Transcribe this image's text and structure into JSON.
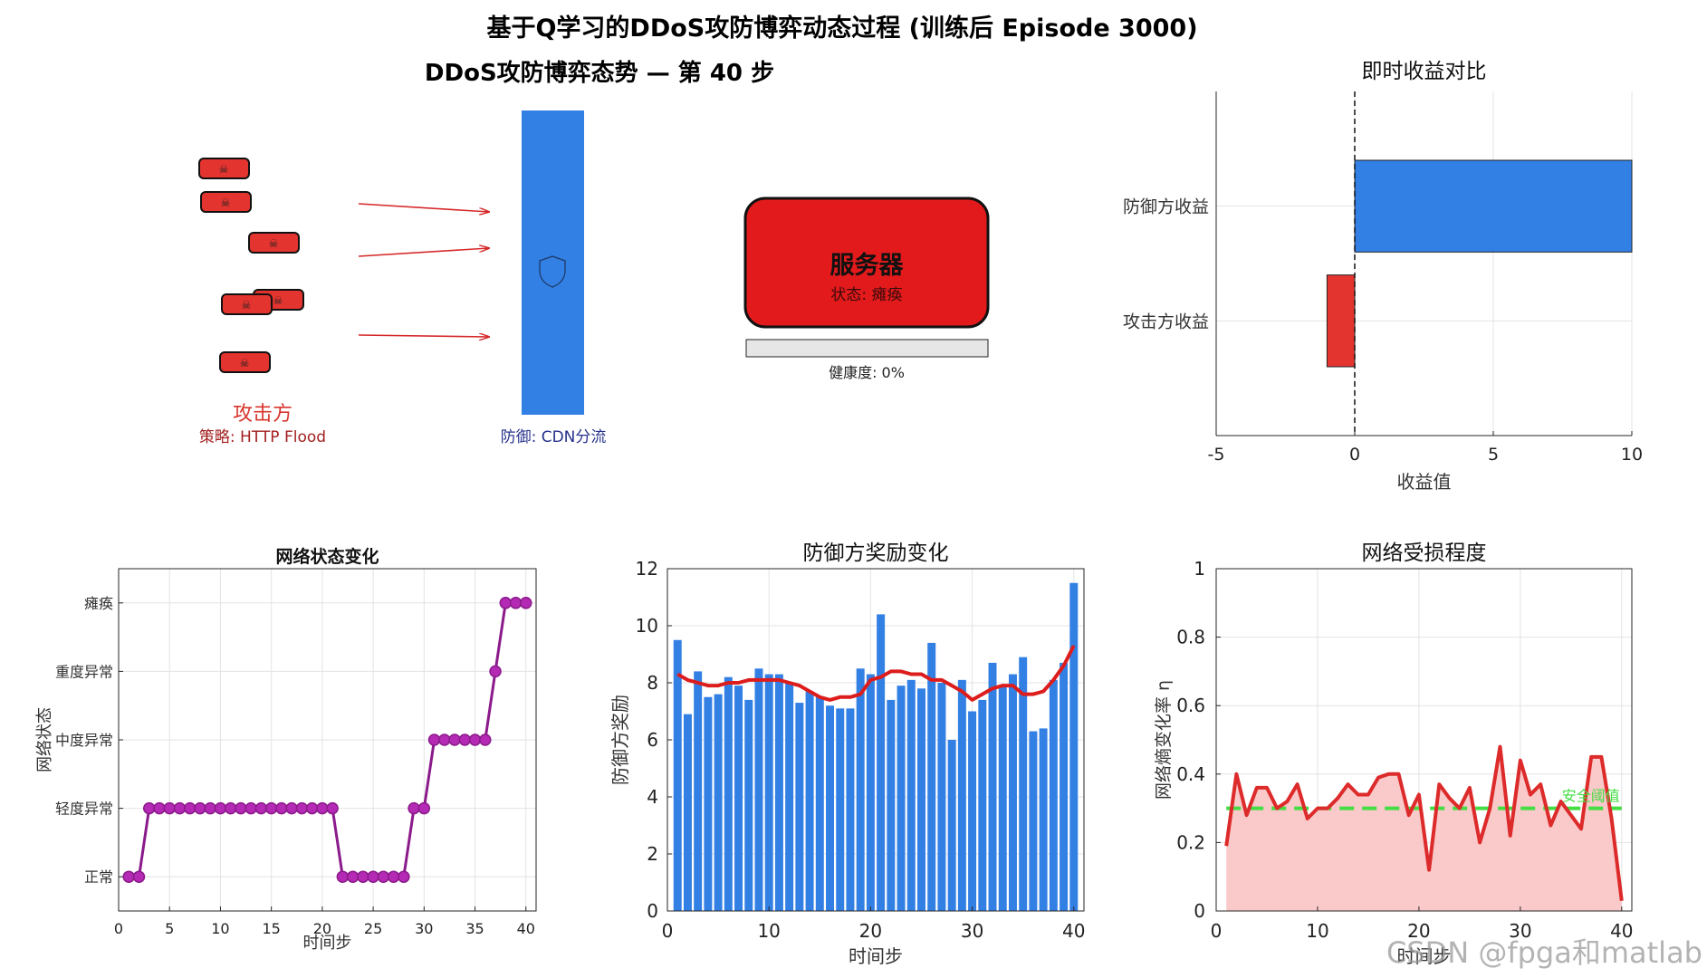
{
  "figure": {
    "main_title": "基于Q学习的DDoS攻防博弈动态过程 (训练后 Episode 3000)",
    "watermark": "CSDN @fpga和matlab"
  },
  "scene": {
    "title": "DDoS攻防博弈态势 — 第 40 步",
    "attacker_label": "攻击方",
    "attacker_strategy": "策略: HTTP Flood",
    "defense_label": "防御: CDN分流",
    "server_label": "服务器",
    "server_status": "状态: 瘫痪",
    "health_label": "健康度: 0%",
    "health_value": 0,
    "attacker_count": 6,
    "colors": {
      "attacker": "#e31a1c",
      "wall": "#3380e5",
      "server": "#e31a1c",
      "arrow": "#d62728"
    }
  },
  "chart_data": [
    {
      "id": "payoff",
      "type": "bar",
      "orientation": "horizontal",
      "title": "即时收益对比",
      "xlabel": "收益值",
      "categories": [
        "防御方收益",
        "攻击方收益"
      ],
      "values": [
        10.0,
        -1.0
      ],
      "colors": [
        "#3380e5",
        "#e3342f"
      ],
      "xlim": [
        -5,
        10
      ],
      "xticks": [
        -5,
        0,
        5,
        10
      ],
      "grid": true
    },
    {
      "id": "network_state",
      "type": "line",
      "title": "网络状态变化",
      "xlabel": "时间步",
      "ylabel": "网络状态",
      "x": [
        1,
        2,
        3,
        4,
        5,
        6,
        7,
        8,
        9,
        10,
        11,
        12,
        13,
        14,
        15,
        16,
        17,
        18,
        19,
        20,
        21,
        22,
        23,
        24,
        25,
        26,
        27,
        28,
        29,
        30,
        31,
        32,
        33,
        34,
        35,
        36,
        37,
        38,
        39,
        40
      ],
      "y": [
        1,
        1,
        2,
        2,
        2,
        2,
        2,
        2,
        2,
        2,
        2,
        2,
        2,
        2,
        2,
        2,
        2,
        2,
        2,
        2,
        2,
        1,
        1,
        1,
        1,
        1,
        1,
        1,
        2,
        2,
        3,
        3,
        3,
        3,
        3,
        3,
        4,
        5,
        5,
        5
      ],
      "ytick_values": [
        1,
        2,
        3,
        4,
        5
      ],
      "ytick_labels": [
        "正常",
        "轻度异常",
        "中度异常",
        "重度异常",
        "瘫痪"
      ],
      "xlim": [
        0,
        41
      ],
      "ylim": [
        0.5,
        5.5
      ],
      "xticks": [
        0,
        5,
        10,
        15,
        20,
        25,
        30,
        35,
        40
      ],
      "color": "#8b1a8b",
      "marker_color": "#b42ab4",
      "grid": true
    },
    {
      "id": "defender_reward",
      "type": "bar",
      "title": "防御方奖励变化",
      "xlabel": "时间步",
      "ylabel": "防御方奖励",
      "x": [
        1,
        2,
        3,
        4,
        5,
        6,
        7,
        8,
        9,
        10,
        11,
        12,
        13,
        14,
        15,
        16,
        17,
        18,
        19,
        20,
        21,
        22,
        23,
        24,
        25,
        26,
        27,
        28,
        29,
        30,
        31,
        32,
        33,
        34,
        35,
        36,
        37,
        38,
        39,
        40
      ],
      "values": [
        9.5,
        6.9,
        8.4,
        7.5,
        7.6,
        8.2,
        7.9,
        7.4,
        8.5,
        8.3,
        8.3,
        8.0,
        7.3,
        7.7,
        7.5,
        7.2,
        7.1,
        7.1,
        8.5,
        8.3,
        10.4,
        7.4,
        7.9,
        8.1,
        7.8,
        9.4,
        8.0,
        6.0,
        8.1,
        7.0,
        7.4,
        8.7,
        7.9,
        8.3,
        8.9,
        6.3,
        6.4,
        8.1,
        8.7,
        11.5
      ],
      "trend": [
        8.3,
        8.1,
        8.0,
        7.9,
        7.9,
        8.0,
        8.0,
        8.1,
        8.1,
        8.1,
        8.1,
        8.0,
        7.9,
        7.7,
        7.5,
        7.4,
        7.5,
        7.5,
        7.6,
        8.1,
        8.2,
        8.4,
        8.4,
        8.3,
        8.3,
        8.1,
        8.1,
        7.9,
        7.7,
        7.4,
        7.6,
        7.8,
        7.9,
        7.9,
        7.6,
        7.6,
        7.7,
        8.1,
        8.6,
        9.3
      ],
      "xlim": [
        0,
        41
      ],
      "ylim": [
        0,
        12
      ],
      "xticks": [
        0,
        10,
        20,
        30,
        40
      ],
      "yticks": [
        0,
        2,
        4,
        6,
        8,
        10,
        12
      ],
      "bar_color": "#3380e5",
      "trend_color": "#dd1c1c",
      "grid": true
    },
    {
      "id": "network_damage",
      "type": "area",
      "title": "网络受损程度",
      "xlabel": "时间步",
      "ylabel": "网络熵变化率 η",
      "x": [
        1,
        2,
        3,
        4,
        5,
        6,
        7,
        8,
        9,
        10,
        11,
        12,
        13,
        14,
        15,
        16,
        17,
        18,
        19,
        20,
        21,
        22,
        23,
        24,
        25,
        26,
        27,
        28,
        29,
        30,
        31,
        32,
        33,
        34,
        35,
        36,
        37,
        38,
        39,
        40
      ],
      "y": [
        0.19,
        0.4,
        0.28,
        0.36,
        0.36,
        0.3,
        0.32,
        0.37,
        0.27,
        0.3,
        0.3,
        0.33,
        0.37,
        0.34,
        0.34,
        0.39,
        0.4,
        0.4,
        0.28,
        0.34,
        0.12,
        0.37,
        0.33,
        0.3,
        0.36,
        0.2,
        0.3,
        0.48,
        0.22,
        0.44,
        0.34,
        0.37,
        0.25,
        0.32,
        0.28,
        0.24,
        0.45,
        0.45,
        0.27,
        0.03
      ],
      "threshold": 0.3,
      "threshold_label": "安全阈值",
      "xlim": [
        0,
        41
      ],
      "ylim": [
        0,
        1
      ],
      "xticks": [
        0,
        10,
        20,
        30,
        40
      ],
      "yticks": [
        0,
        0.2,
        0.4,
        0.6,
        0.8,
        1
      ],
      "line_color": "#dd2a2a",
      "fill_color": "#f9c3c3",
      "threshold_color": "#44dd44",
      "grid": true
    }
  ]
}
